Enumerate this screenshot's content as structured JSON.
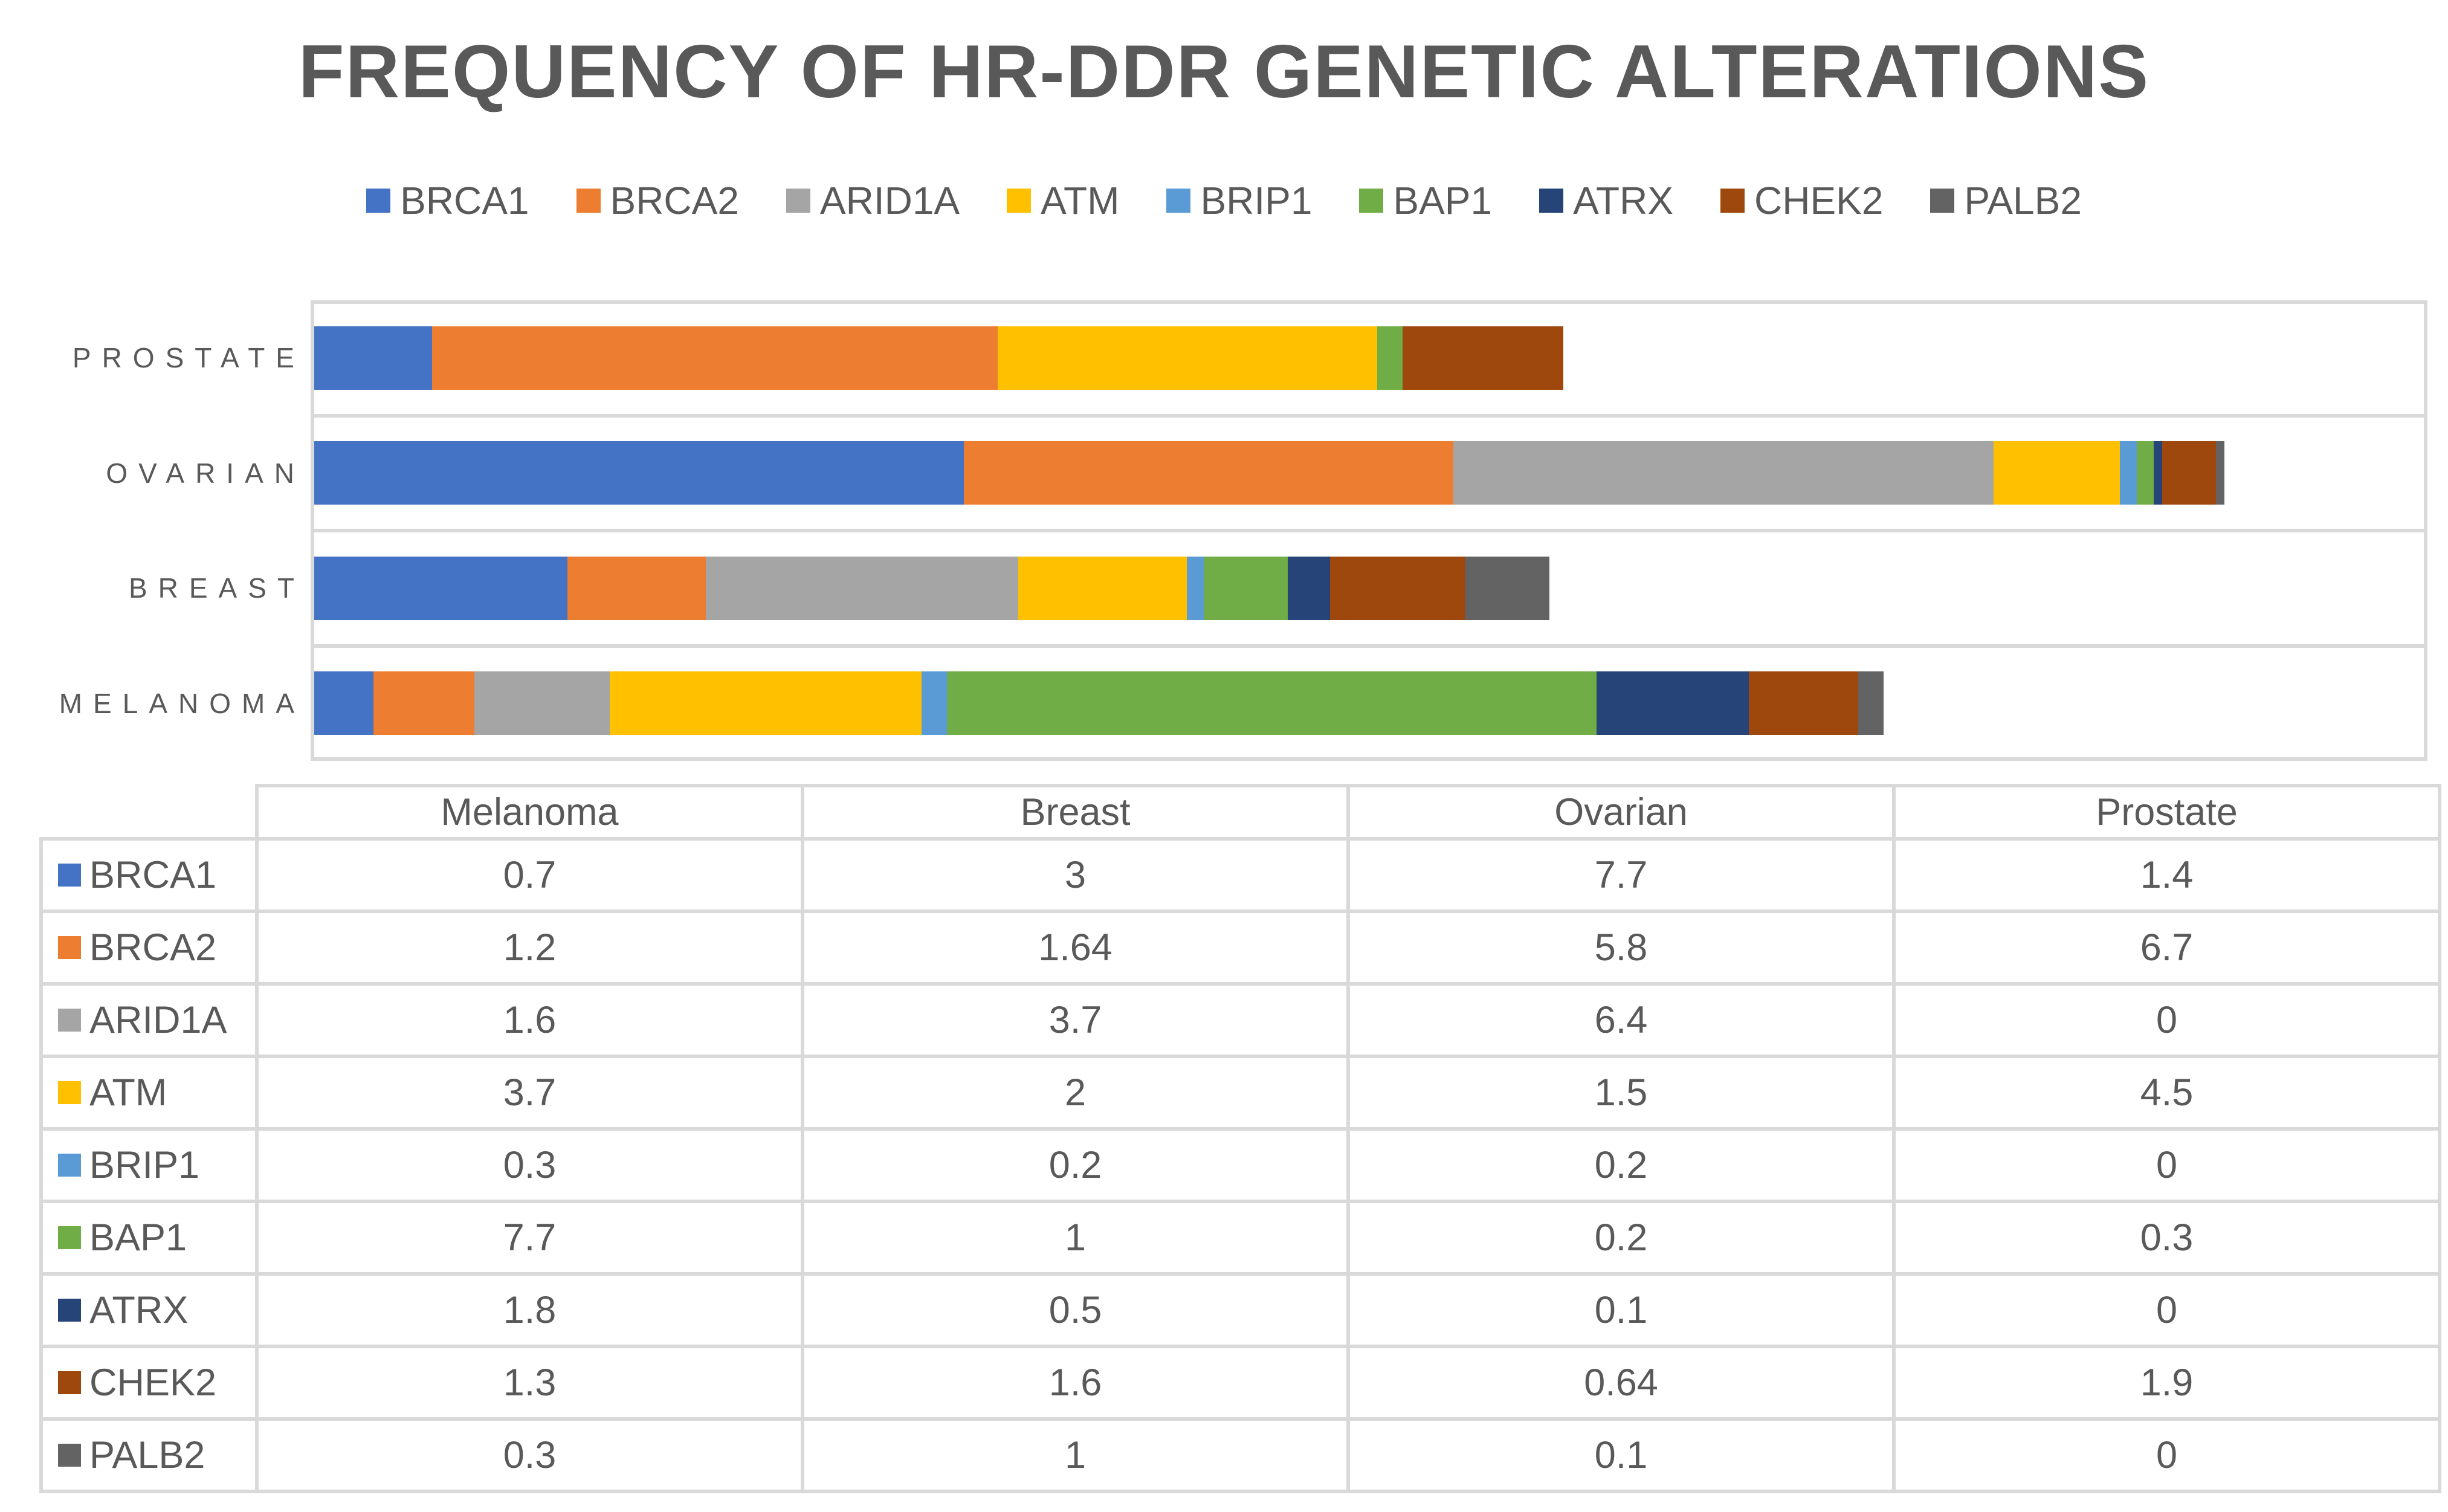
{
  "page": {
    "background": "#FFFFFF",
    "text_color": "#595959",
    "grid_color": "#D9D9D9"
  },
  "chart_data": {
    "type": "bar",
    "stacked": true,
    "orientation": "horizontal",
    "title": "FREQUENCY OF HR-DDR GENETIC ALTERATIONS",
    "legend_position": "top",
    "value_axis": {
      "min": 0,
      "max": 25,
      "tick_labels_visible": false
    },
    "gridlines": "category-boundaries",
    "categories": [
      "PROSTATE",
      "OVARIAN",
      "BREAST",
      "MELANOMA"
    ],
    "series": [
      {
        "name": "BRCA1",
        "color": "#4472C4",
        "values": {
          "melanoma": 0.7,
          "breast": 3,
          "ovarian": 7.7,
          "prostate": 1.4
        }
      },
      {
        "name": "BRCA2",
        "color": "#ED7D31",
        "values": {
          "melanoma": 1.2,
          "breast": 1.64,
          "ovarian": 5.8,
          "prostate": 6.7
        }
      },
      {
        "name": "ARID1A",
        "color": "#A5A5A5",
        "values": {
          "melanoma": 1.6,
          "breast": 3.7,
          "ovarian": 6.4,
          "prostate": 0
        }
      },
      {
        "name": "ATM",
        "color": "#FFC000",
        "values": {
          "melanoma": 3.7,
          "breast": 2,
          "ovarian": 1.5,
          "prostate": 4.5
        }
      },
      {
        "name": "BRIP1",
        "color": "#5B9BD5",
        "values": {
          "melanoma": 0.3,
          "breast": 0.2,
          "ovarian": 0.2,
          "prostate": 0
        }
      },
      {
        "name": "BAP1",
        "color": "#70AD47",
        "values": {
          "melanoma": 7.7,
          "breast": 1,
          "ovarian": 0.2,
          "prostate": 0.3
        }
      },
      {
        "name": "ATRX",
        "color": "#264478",
        "values": {
          "melanoma": 1.8,
          "breast": 0.5,
          "ovarian": 0.1,
          "prostate": 0
        }
      },
      {
        "name": "CHEK2",
        "color": "#9E480E",
        "values": {
          "melanoma": 1.3,
          "breast": 1.6,
          "ovarian": 0.64,
          "prostate": 1.9
        }
      },
      {
        "name": "PALB2",
        "color": "#636363",
        "values": {
          "melanoma": 0.3,
          "breast": 1,
          "ovarian": 0.1,
          "prostate": 0
        }
      }
    ],
    "data_table": {
      "column_headers": [
        "Melanoma",
        "Breast",
        "Ovarian",
        "Prostate"
      ],
      "column_keys": [
        "melanoma",
        "breast",
        "ovarian",
        "prostate"
      ]
    }
  }
}
